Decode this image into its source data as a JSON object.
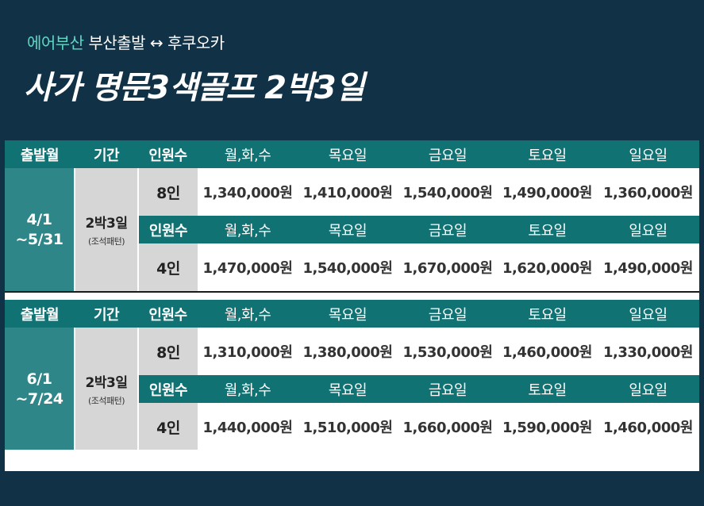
{
  "header": {
    "brand": "에어부산",
    "route": "부산출발 ↔ 후쿠오카",
    "title": "사가 명문3색골프 2박3일"
  },
  "columns": {
    "depart": "출발월",
    "period": "기간",
    "pax": "인원수",
    "days": [
      "월,화,수",
      "목요일",
      "금요일",
      "토요일",
      "일요일"
    ]
  },
  "blocks": [
    {
      "date_line1": "4/1",
      "date_line2": "~5/31",
      "period": "2박3일",
      "period_note": "(조석패턴)",
      "rows": [
        {
          "pax": "8인",
          "prices": [
            "1,340,000원",
            "1,410,000원",
            "1,540,000원",
            "1,490,000원",
            "1,360,000원"
          ]
        },
        {
          "pax": "4인",
          "prices": [
            "1,470,000원",
            "1,540,000원",
            "1,670,000원",
            "1,620,000원",
            "1,490,000원"
          ]
        }
      ]
    },
    {
      "date_line1": "6/1",
      "date_line2": "~7/24",
      "period": "2박3일",
      "period_note": "(조석패턴)",
      "rows": [
        {
          "pax": "8인",
          "prices": [
            "1,310,000원",
            "1,380,000원",
            "1,530,000원",
            "1,460,000원",
            "1,330,000원"
          ]
        },
        {
          "pax": "4인",
          "prices": [
            "1,440,000원",
            "1,510,000원",
            "1,660,000원",
            "1,590,000원",
            "1,460,000원"
          ]
        }
      ]
    }
  ]
}
